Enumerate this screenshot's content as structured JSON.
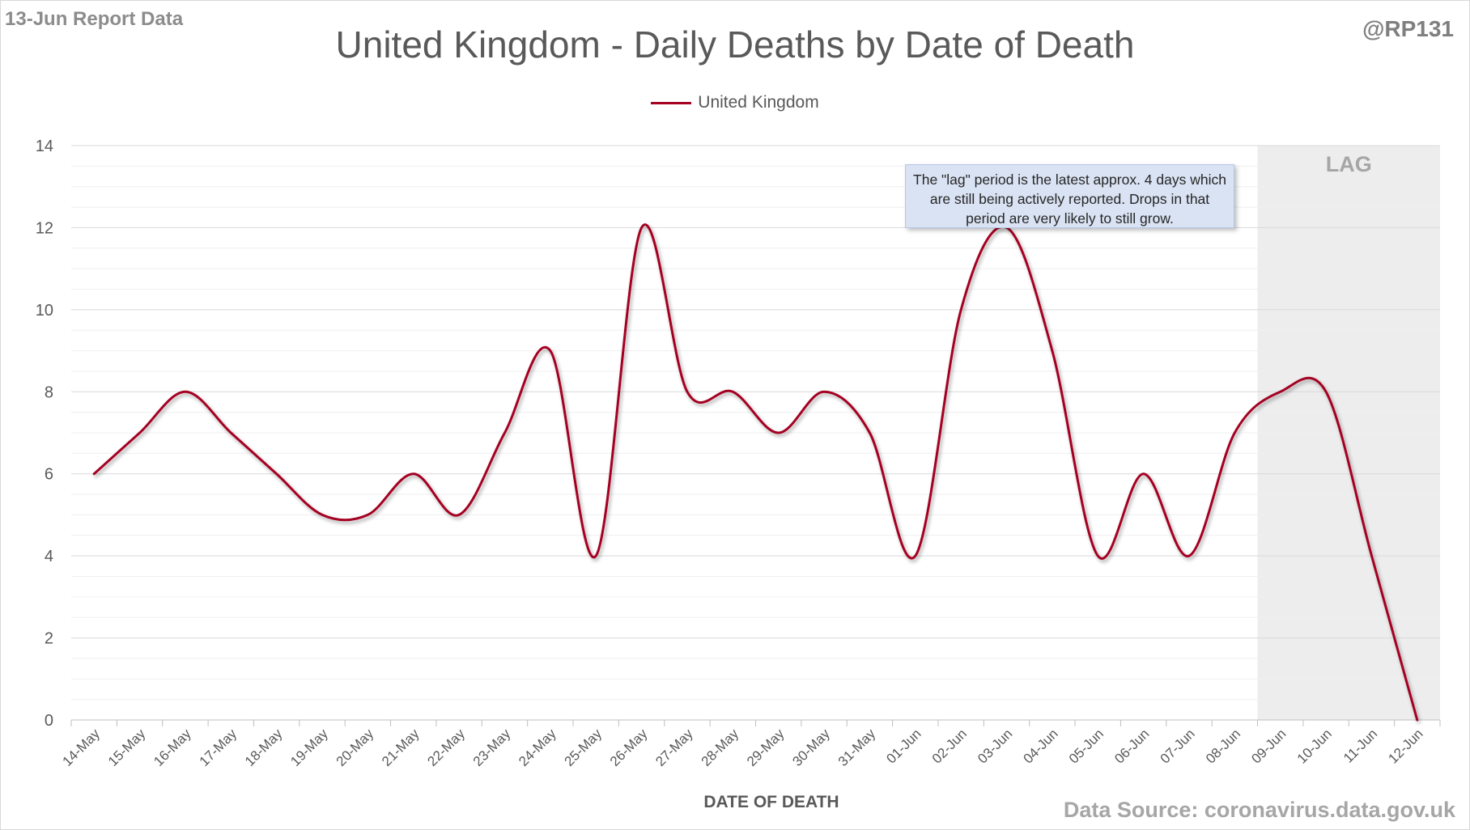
{
  "report_label": "13-Jun Report Data",
  "handle": "@RP131",
  "source": "Data Source: coronavirus.data.gov.uk",
  "lag_note": "The \"lag\" period is the latest approx. 4 days which are still being actively reported. Drops in that period are very likely to still grow.",
  "chart_data": {
    "type": "line",
    "title": "United Kingdom - Daily Deaths by Date of Death",
    "xlabel": "DATE OF DEATH",
    "ylabel": "",
    "ylim": [
      0,
      14
    ],
    "y_ticks": [
      0,
      2,
      4,
      6,
      8,
      10,
      12,
      14
    ],
    "grid": "horizontal",
    "legend_position": "top",
    "categories": [
      "14-May",
      "15-May",
      "16-May",
      "17-May",
      "18-May",
      "19-May",
      "20-May",
      "21-May",
      "22-May",
      "23-May",
      "24-May",
      "25-May",
      "26-May",
      "27-May",
      "28-May",
      "29-May",
      "30-May",
      "31-May",
      "01-Jun",
      "02-Jun",
      "03-Jun",
      "04-Jun",
      "05-Jun",
      "06-Jun",
      "07-Jun",
      "08-Jun",
      "09-Jun",
      "10-Jun",
      "11-Jun",
      "12-Jun"
    ],
    "series": [
      {
        "name": "United Kingdom",
        "color": "#a50021",
        "values": [
          6,
          7,
          8,
          7,
          6,
          5,
          5,
          6,
          5,
          7,
          9,
          4,
          12,
          8,
          8,
          7,
          8,
          7,
          4,
          10,
          12,
          9,
          4,
          6,
          4,
          7,
          8,
          8,
          4,
          0
        ]
      }
    ],
    "shaded_region": {
      "label": "LAG",
      "from": "09-Jun",
      "to": "12-Jun",
      "color": "#ededed"
    }
  }
}
